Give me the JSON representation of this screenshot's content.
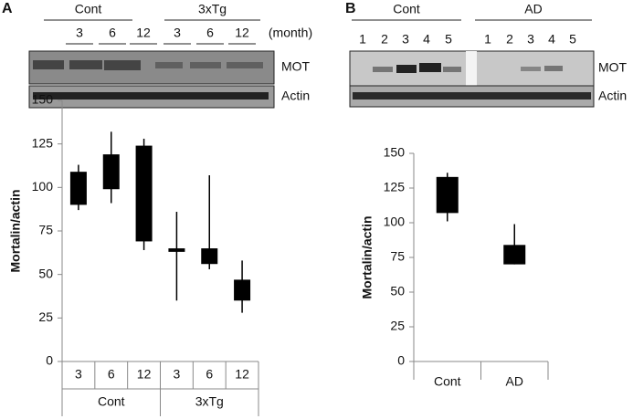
{
  "panel_labels": [
    "A",
    "B"
  ],
  "blots": [
    {
      "groups": [
        "Cont",
        "3xTg"
      ],
      "lanes": [
        "3",
        "6",
        "12",
        "3",
        "6",
        "12"
      ],
      "unit": "(month)",
      "rows": [
        "MOT",
        "Actin"
      ]
    },
    {
      "groups": [
        "Cont",
        "AD"
      ],
      "lanes": [
        "1",
        "2",
        "3",
        "4",
        "5",
        "1",
        "2",
        "3",
        "4",
        "5"
      ],
      "rows": [
        "MOT",
        "Actin"
      ]
    }
  ],
  "chart_data": [
    {
      "type": "box",
      "ylabel": "Mortalin/actin",
      "categories": [
        "3",
        "6",
        "12",
        "3",
        "6",
        "12"
      ],
      "groups": [
        "Cont",
        "3xTg"
      ],
      "low": [
        87,
        91,
        64,
        35,
        53,
        28
      ],
      "q1": [
        90,
        99,
        69,
        63,
        56,
        35
      ],
      "q3": [
        109,
        119,
        124,
        65,
        65,
        47
      ],
      "high": [
        113,
        132,
        128,
        86,
        107,
        58
      ],
      "color": "#000000",
      "ylim": [
        0,
        150
      ],
      "yticks": [
        0,
        25,
        50,
        75,
        100,
        125,
        150
      ]
    },
    {
      "type": "box",
      "ylabel": "Mortalin/actin",
      "categories": [
        "Cont",
        "AD"
      ],
      "low": [
        101,
        70
      ],
      "q1": [
        107,
        70
      ],
      "q3": [
        133,
        84
      ],
      "high": [
        136,
        99
      ],
      "color": "#000000",
      "ylim": [
        0,
        150
      ],
      "yticks": [
        0,
        25,
        50,
        75,
        100,
        125,
        150
      ]
    }
  ]
}
